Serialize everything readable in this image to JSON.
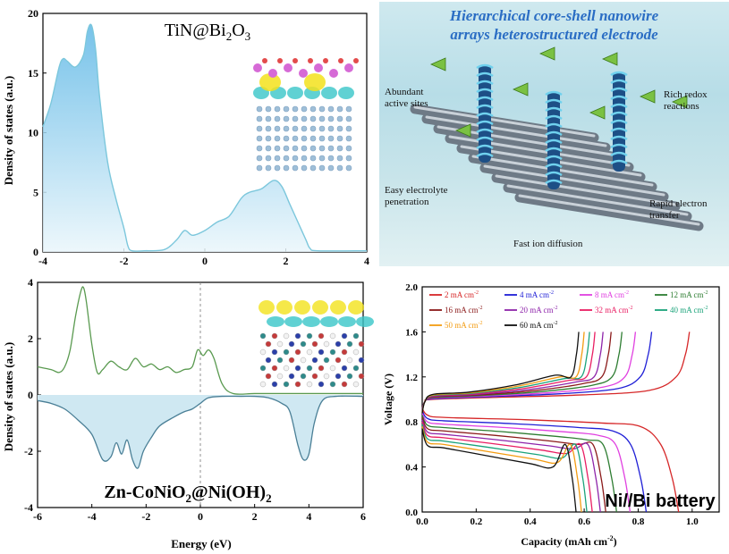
{
  "figure": {
    "panels": {
      "dos_top": {
        "title_main": "TiN@Bi",
        "title_sub": "2",
        "title_tail": "O",
        "title_sub2": "3",
        "ylabel": "Density of states (a.u.)",
        "fill_color": "#b3dcf0",
        "line_color": "#7cc7dc"
      },
      "dos_bottom": {
        "title_main": "Zn-CoNiO",
        "title_sub": "2",
        "title_tail": "@Ni(OH)",
        "title_sub2": "2",
        "ylabel": "Density of states (a.u.)",
        "xlabel": "Energy (eV)",
        "up_color": "#5a9a50",
        "down_color": "#4a7f96",
        "fill_color": "#cfe8f2"
      },
      "schematic": {
        "title_line1": "Hierarchical core-shell nanowire",
        "title_line2": "arrays heterostructured electrode",
        "labels": {
          "active_sites_1": "Abundant",
          "active_sites_2": "active sites",
          "redox_1": "Rich redox",
          "redox_2": "reactions",
          "electrolyte_1": "Easy electrolyte",
          "electrolyte_2": "penetration",
          "electron_1": "Rapid electron",
          "electron_2": "transfer",
          "ion": "Fast ion diffusion"
        }
      },
      "battery": {
        "label": "Ni//Bi battery",
        "xlabel": "Capacity (mAh cm",
        "xlabel_sup": "-2",
        "xlabel_tail": ")",
        "ylabel": "Voltage (V)"
      }
    }
  },
  "chart_data": [
    {
      "type": "area",
      "id": "dos_top",
      "xlim": [
        -4,
        4
      ],
      "ylim": [
        0,
        20
      ],
      "xticks": [
        -4,
        -2,
        0,
        2,
        4
      ],
      "yticks": [
        0,
        5,
        10,
        15,
        20
      ],
      "x": [
        -4,
        -3.8,
        -3.6,
        -3.5,
        -3.4,
        -3.2,
        -3.0,
        -2.9,
        -2.8,
        -2.7,
        -2.6,
        -2.4,
        -2.2,
        -2.0,
        -1.9,
        -1.8,
        -1.5,
        -1.0,
        -0.7,
        -0.5,
        -0.3,
        0,
        0.3,
        0.6,
        0.9,
        1.1,
        1.4,
        1.7,
        1.9,
        2.1,
        2.3,
        2.5,
        2.6,
        2.8,
        4.0
      ],
      "y": [
        10.5,
        12.5,
        15.5,
        16.2,
        16.0,
        15.5,
        16.5,
        18.5,
        19.0,
        17.0,
        13.0,
        7.5,
        4.5,
        2.0,
        0.5,
        0.1,
        0.1,
        0.2,
        1.0,
        1.8,
        1.4,
        1.8,
        2.5,
        3.0,
        4.5,
        5.0,
        5.3,
        6.0,
        5.5,
        4.0,
        2.5,
        1.0,
        0.3,
        0.1,
        0.1
      ]
    },
    {
      "type": "line",
      "id": "dos_bottom",
      "xlim": [
        -6,
        6
      ],
      "ylim": [
        -4,
        4
      ],
      "xticks": [
        -6,
        -4,
        -2,
        0,
        2,
        4,
        6
      ],
      "yticks": [
        -4,
        -2,
        0,
        2,
        4
      ],
      "series": [
        {
          "x": [
            -6,
            -5.5,
            -5.2,
            -5.0,
            -4.8,
            -4.6,
            -4.4,
            -4.3,
            -4.2,
            -4.0,
            -3.8,
            -3.6,
            -3.3,
            -3.0,
            -2.7,
            -2.4,
            -2.1,
            -1.8,
            -1.5,
            -1.2,
            -0.9,
            -0.6,
            -0.3,
            -0.1,
            0.1,
            0.3,
            0.5,
            0.8,
            1.2,
            2.0,
            3.0,
            4.0,
            5.0,
            6.0
          ],
          "y": [
            1.0,
            0.9,
            0.8,
            1.0,
            1.6,
            2.8,
            3.7,
            3.8,
            3.3,
            1.8,
            0.8,
            0.9,
            1.2,
            1.0,
            0.9,
            1.3,
            1.0,
            1.1,
            0.9,
            1.0,
            0.8,
            0.9,
            1.0,
            1.6,
            1.4,
            1.6,
            1.3,
            0.4,
            0.05,
            0.05,
            0.05,
            0.05,
            0.05,
            0.05
          ]
        },
        {
          "x": [
            -6,
            -5.5,
            -5.0,
            -4.5,
            -4.0,
            -3.6,
            -3.3,
            -3.1,
            -2.9,
            -2.7,
            -2.5,
            -2.3,
            -2.1,
            -1.8,
            -1.5,
            -1.0,
            -0.6,
            -0.3,
            0,
            0.3,
            0.8,
            1.5,
            2.0,
            2.5,
            3.0,
            3.3,
            3.6,
            3.8,
            4.0,
            4.2,
            4.5,
            5.0,
            6.0
          ],
          "y": [
            -0.2,
            -0.3,
            -0.5,
            -0.9,
            -1.4,
            -2.3,
            -2.2,
            -1.7,
            -2.1,
            -1.6,
            -2.3,
            -2.6,
            -2.0,
            -1.5,
            -1.1,
            -0.8,
            -0.6,
            -0.5,
            -0.3,
            -0.1,
            -0.05,
            -0.05,
            -0.05,
            -0.1,
            -0.3,
            -0.6,
            -1.8,
            -2.3,
            -2.1,
            -1.0,
            -0.2,
            -0.05,
            -0.05
          ]
        }
      ]
    },
    {
      "type": "line",
      "id": "battery",
      "xlim": [
        0,
        1.1
      ],
      "ylim": [
        0,
        2.0
      ],
      "xticks": [
        0.0,
        0.2,
        0.4,
        0.6,
        0.8,
        1.0
      ],
      "yticks": [
        0.0,
        0.4,
        0.8,
        1.2,
        1.6,
        2.0
      ],
      "legend_placement": "top",
      "series": [
        {
          "name": "2 mA cm",
          "unit_sup": "-2",
          "color": "#d62728",
          "charge_end": 0.99,
          "discharge_end": 0.95
        },
        {
          "name": "4 mA cm",
          "unit_sup": "-2",
          "color": "#1f1fd6",
          "charge_end": 0.85,
          "discharge_end": 0.83
        },
        {
          "name": "8 mA cm",
          "unit_sup": "-2",
          "color": "#e040e0",
          "charge_end": 0.79,
          "discharge_end": 0.77
        },
        {
          "name": "12 mA cm",
          "unit_sup": "-2",
          "color": "#2e7d32",
          "charge_end": 0.74,
          "discharge_end": 0.72
        },
        {
          "name": "16 mA cm",
          "unit_sup": "-2",
          "color": "#8b1a1a",
          "charge_end": 0.7,
          "discharge_end": 0.68
        },
        {
          "name": "20 mA cm",
          "unit_sup": "-2",
          "color": "#8e24aa",
          "charge_end": 0.67,
          "discharge_end": 0.66
        },
        {
          "name": "32 mA cm",
          "unit_sup": "-2",
          "color": "#e91e63",
          "charge_end": 0.64,
          "discharge_end": 0.63
        },
        {
          "name": "40 mA cm",
          "unit_sup": "-2",
          "color": "#1aa37a",
          "charge_end": 0.62,
          "discharge_end": 0.61
        },
        {
          "name": "50 mA cm",
          "unit_sup": "-2",
          "color": "#f39c12",
          "charge_end": 0.6,
          "discharge_end": 0.59
        },
        {
          "name": "60 mA cm",
          "unit_sup": "-2",
          "color": "#111111",
          "charge_end": 0.58,
          "discharge_end": 0.57
        }
      ]
    }
  ]
}
